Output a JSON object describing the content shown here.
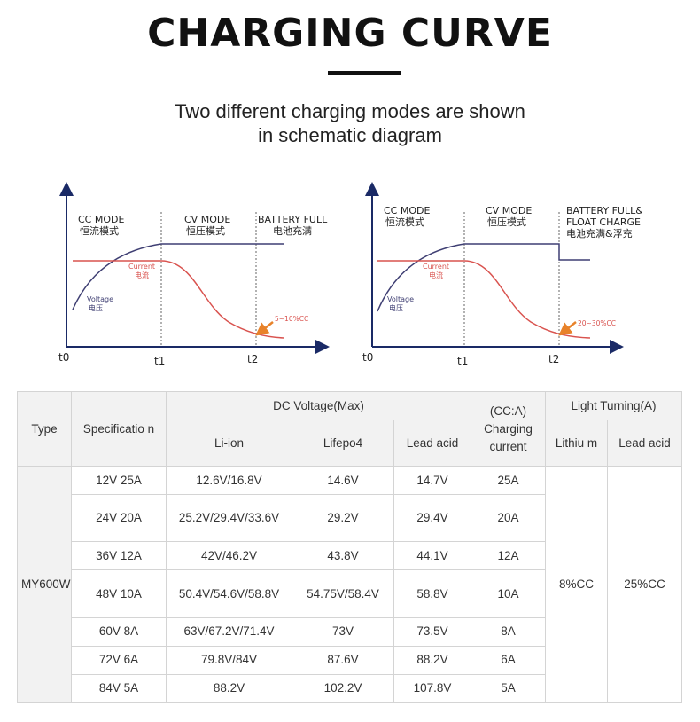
{
  "header": {
    "title": "CHARGING CURVE",
    "subtitle_line1": "Two different charging modes are shown",
    "subtitle_line2": "in schematic diagram"
  },
  "charts": {
    "left": {
      "zones": [
        {
          "en": "CC MODE",
          "cn": "恒流模式"
        },
        {
          "en": "CV MODE",
          "cn": "恒压模式"
        },
        {
          "en": "BATTERY FULL",
          "cn": "电池充满"
        }
      ],
      "current_en": "Current",
      "current_cn": "电流",
      "voltage_en": "Voltage",
      "voltage_cn": "电压",
      "annotation": "5~10%CC",
      "ticks": [
        "t0",
        "t1",
        "t2"
      ]
    },
    "right": {
      "zones": [
        {
          "en": "CC MODE",
          "cn": "恒流模式"
        },
        {
          "en": "CV MODE",
          "cn": "恒压模式"
        },
        {
          "en": "BATTERY FULL&",
          "en2": "FLOAT CHARGE",
          "cn": "电池充满&浮充"
        }
      ],
      "current_en": "Current",
      "current_cn": "电流",
      "voltage_en": "Voltage",
      "voltage_cn": "电压",
      "annotation": "20~30%CC",
      "ticks": [
        "t0",
        "t1",
        "t2"
      ]
    },
    "colors": {
      "voltage": "#3f3f73",
      "current": "#d9534f",
      "arrow": "#e8822a"
    }
  },
  "table": {
    "headers": {
      "type": "Type",
      "specification": "Specificatio n",
      "dc_voltage": "DC Voltage(Max)",
      "li_ion": "Li-ion",
      "lifepo4": "Lifepo4",
      "lead_acid": "Lead acid",
      "cc_a": "(CC:A)",
      "charging_current": "Charging current",
      "light_turning": "Light Turning(A)",
      "lithium": "Lithiu m",
      "lead_acid_2": "Lead acid"
    },
    "model": "MY600W",
    "light_lithium": "8%CC",
    "light_lead": "25%CC",
    "rows": [
      {
        "spec": "12V 25A",
        "li": "12.6V/16.8V",
        "lfp": "14.6V",
        "lead": "14.7V",
        "cc": "25A"
      },
      {
        "spec": "24V 20A",
        "li": "25.2V/29.4V/33.6V",
        "lfp": "29.2V",
        "lead": "29.4V",
        "cc": "20A"
      },
      {
        "spec": "36V 12A",
        "li": "42V/46.2V",
        "lfp": "43.8V",
        "lead": "44.1V",
        "cc": "12A"
      },
      {
        "spec": "48V 10A",
        "li": "50.4V/54.6V/58.8V",
        "lfp": "54.75V/58.4V",
        "lead": "58.8V",
        "cc": "10A"
      },
      {
        "spec": "60V 8A",
        "li": "63V/67.2V/71.4V",
        "lfp": "73V",
        "lead": "73.5V",
        "cc": "8A"
      },
      {
        "spec": "72V 6A",
        "li": "79.8V/84V",
        "lfp": "87.6V",
        "lead": "88.2V",
        "cc": "6A"
      },
      {
        "spec": "84V 5A",
        "li": "88.2V",
        "lfp": "102.2V",
        "lead": "107.8V",
        "cc": "5A"
      }
    ]
  }
}
